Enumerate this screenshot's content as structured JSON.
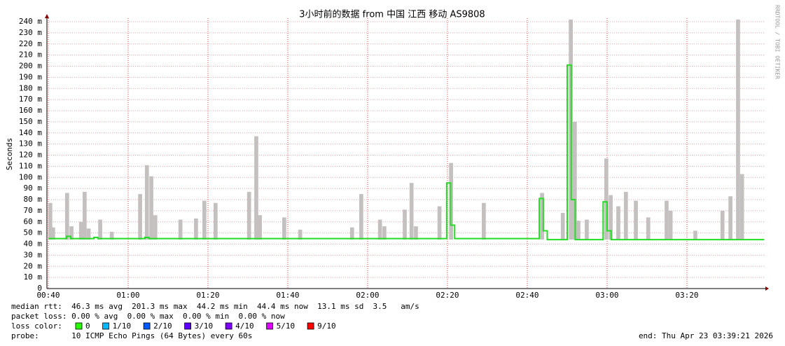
{
  "chart_data": {
    "type": "smokeping",
    "title": "3小时前的数据 from 中国 江西 移动 AS9808",
    "y_label": "Seconds",
    "side_text": "RRDTOOL / TOBI OETIKER",
    "ylim": [
      0,
      240
    ],
    "yticks": [
      0,
      {
        "value": 10,
        "label": "10 m"
      },
      {
        "value": 20,
        "label": "20 m"
      },
      {
        "value": 30,
        "label": "30 m"
      },
      {
        "value": 40,
        "label": "40 m"
      },
      {
        "value": 50,
        "label": "50 m"
      },
      {
        "value": 60,
        "label": "60 m"
      },
      {
        "value": 70,
        "label": "70 m"
      },
      {
        "value": 80,
        "label": "80 m"
      },
      {
        "value": 90,
        "label": "90 m"
      },
      {
        "value": 100,
        "label": "100 m"
      },
      {
        "value": 110,
        "label": "110 m"
      },
      {
        "value": 120,
        "label": "120 m"
      },
      {
        "value": 130,
        "label": "130 m"
      },
      {
        "value": 140,
        "label": "140 m"
      },
      {
        "value": 150,
        "label": "150 m"
      },
      {
        "value": 160,
        "label": "160 m"
      },
      {
        "value": 170,
        "label": "170 m"
      },
      {
        "value": 180,
        "label": "180 m"
      },
      {
        "value": 190,
        "label": "190 m"
      },
      {
        "value": 200,
        "label": "200 m"
      },
      {
        "value": 210,
        "label": "210 m"
      },
      {
        "value": 220,
        "label": "220 m"
      },
      {
        "value": 230,
        "label": "230 m"
      },
      {
        "value": 240,
        "label": "240 m"
      }
    ],
    "xlim": [
      40,
      219.3
    ],
    "xticks": [
      {
        "value": 40,
        "label": "00:40"
      },
      {
        "value": 60,
        "label": "01:00"
      },
      {
        "value": 80,
        "label": "01:20"
      },
      {
        "value": 100,
        "label": "01:40"
      },
      {
        "value": 120,
        "label": "02:00"
      },
      {
        "value": 140,
        "label": "02:20"
      },
      {
        "value": 160,
        "label": "02:40"
      },
      {
        "value": 180,
        "label": "03:00"
      },
      {
        "value": 200,
        "label": "03:20"
      }
    ],
    "grid": true,
    "smoke": {
      "color": "#c4c0c0",
      "x": [
        40,
        40.7,
        44.2,
        45.3,
        47.7,
        48.6,
        49.6,
        52.5,
        55.4,
        62.5,
        64.2,
        65.3,
        66.3,
        72.6,
        76.5,
        78.6,
        81.4,
        89.8,
        91.6,
        92.5,
        98.6,
        102.6,
        115.6,
        117.9,
        122.6,
        123.7,
        128.8,
        130.5,
        131.6,
        137.5,
        140.4,
        148.6,
        163.2,
        168.4,
        170.4,
        171.4,
        172.3,
        174.4,
        179.3,
        180.4,
        182.3,
        184.2,
        186.7,
        189.8,
        194.4,
        195.4,
        201.6,
        208.4,
        210.4,
        212.3,
        213.3
      ],
      "low": [
        44,
        44,
        44,
        44,
        44,
        44,
        44,
        44,
        44,
        44,
        44,
        44,
        44,
        44,
        44,
        44,
        44,
        44,
        44,
        44,
        44,
        44,
        44,
        44,
        44,
        44,
        44,
        44,
        44,
        44,
        44,
        44,
        44,
        44,
        44,
        44,
        44,
        44,
        44,
        44,
        44,
        44,
        44,
        44,
        44,
        44,
        44,
        44,
        44,
        44,
        44
      ],
      "high": [
        77,
        55,
        86,
        56,
        60,
        87,
        54,
        62,
        51,
        85,
        111,
        101,
        66,
        62,
        63,
        79,
        77,
        87,
        137,
        66,
        64,
        53,
        55,
        85,
        62,
        56,
        71,
        95,
        56,
        74,
        113,
        77,
        86,
        68,
        242,
        150,
        61,
        62,
        117,
        84,
        74,
        87,
        79,
        64,
        79,
        70,
        52,
        70,
        83,
        242,
        103
      ]
    },
    "series": [
      {
        "name": "median",
        "color": "#22dd22",
        "x": [
          40,
          44.6,
          45.6,
          51.4,
          52.4,
          64.2,
          65.2,
          139.8,
          140.8,
          141.8,
          163,
          164,
          165,
          170,
          171,
          172,
          179,
          180,
          181,
          219.3
        ],
        "values": [
          45,
          47,
          45,
          46,
          45,
          46,
          45,
          95,
          57,
          45,
          81,
          52,
          44,
          201,
          80,
          44,
          78,
          52,
          44,
          44
        ]
      }
    ],
    "stats_lines": [
      "median rtt:  46.3 ms avg  201.3 ms max  44.2 ms min  44.4 ms now  13.1 ms sd  3.5   am/s",
      "packet loss: 0.00 % avg  0.00 % max  0.00 % min  0.00 % now"
    ],
    "loss_title": "loss color:",
    "loss_legend": [
      {
        "label": "0",
        "color": "#26ff00"
      },
      {
        "label": "1/10",
        "color": "#00b8ff"
      },
      {
        "label": "2/10",
        "color": "#0059ff"
      },
      {
        "label": "3/10",
        "color": "#5e00ff"
      },
      {
        "label": "4/10",
        "color": "#7e00ff"
      },
      {
        "label": "5/10",
        "color": "#dd00ff"
      },
      {
        "label": "9/10",
        "color": "#ff0000"
      }
    ],
    "probe": "probe:       10 ICMP Echo Pings (64 Bytes) every 60s",
    "end": "end: Thu Apr 23 03:39:21 2026"
  }
}
